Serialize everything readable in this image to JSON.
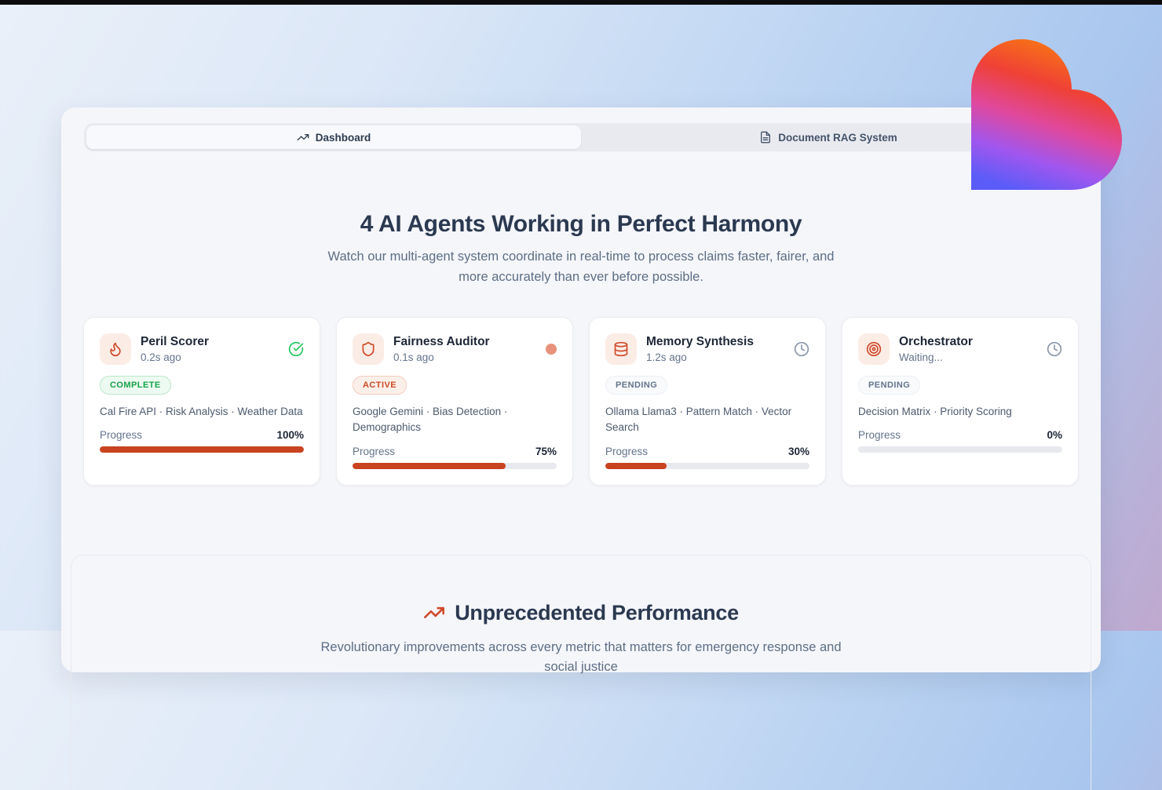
{
  "tabs": [
    {
      "label": "Dashboard",
      "icon": "trending-up-icon",
      "active": true
    },
    {
      "label": "Document RAG System",
      "icon": "document-icon",
      "active": false
    }
  ],
  "hero": {
    "title": "4 AI Agents Working in Perfect Harmony",
    "subtitle": "Watch our multi-agent system coordinate in real-time to process claims faster, fairer, and more accurately than ever before possible."
  },
  "agents": [
    {
      "name": "Peril Scorer",
      "time": "0.2s ago",
      "icon": "flame-icon",
      "status_icon": "check-circle-icon",
      "badge": "COMPLETE",
      "status": "complete",
      "tools": "Cal Fire API · Risk Analysis · Weather Data",
      "progress_label": "Progress",
      "progress_text": "100%",
      "progress_value": 100
    },
    {
      "name": "Fairness Auditor",
      "time": "0.1s ago",
      "icon": "shield-icon",
      "status_icon": "active-dot-icon",
      "badge": "ACTIVE",
      "status": "active",
      "tools": "Google Gemini · Bias Detection · Demographics",
      "progress_label": "Progress",
      "progress_text": "75%",
      "progress_value": 75
    },
    {
      "name": "Memory Synthesis",
      "time": "1.2s ago",
      "icon": "database-icon",
      "status_icon": "clock-icon",
      "badge": "PENDING",
      "status": "pending",
      "tools": "Ollama Llama3 · Pattern Match · Vector Search",
      "progress_label": "Progress",
      "progress_text": "30%",
      "progress_value": 30
    },
    {
      "name": "Orchestrator",
      "time": "Waiting...",
      "icon": "target-icon",
      "status_icon": "clock-icon",
      "badge": "PENDING",
      "status": "pending",
      "tools": "Decision Matrix · Priority Scoring",
      "progress_label": "Progress",
      "progress_text": "0%",
      "progress_value": 0
    }
  ],
  "performance": {
    "title": "Unprecedented Performance",
    "icon": "trending-up-icon",
    "subtitle": "Revolutionary improvements across every metric that matters for emergency response and social justice"
  },
  "colors": {
    "accent_orange_red": "#c8431f",
    "icon_red": "#d1492b",
    "icon_tile_bg": "#fbede6",
    "badge_green": "#16a34a",
    "check_green": "#22c55e",
    "active_dot": "#e8927c",
    "pending_gray": "#64748b",
    "panel_bg": "#f5f6fa",
    "page_blue": "#a9c6ee",
    "page_mauve": "#c0a8ce",
    "heart_gradient": [
      "#fa7d10",
      "#ef4136",
      "#e0489c",
      "#a156ee",
      "#5b5cf8"
    ]
  }
}
